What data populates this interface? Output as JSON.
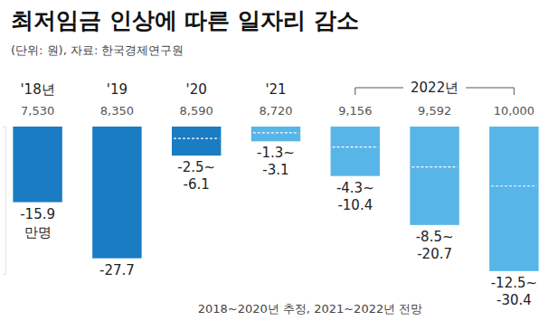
{
  "chart_data": {
    "type": "bar",
    "title": "최저임금 인상에 따른 일자리 감소",
    "subtitle": "(단위: 원), 자료: 한국경제연구원",
    "note": "2018~2020년 추정, 2021~2022년 전망",
    "categories": [
      "'18년",
      "'19",
      "'20",
      "'21",
      null,
      null,
      null
    ],
    "group_label": "2022년",
    "wage_labels": [
      "7,530",
      "8,350",
      "8,590",
      "8,720",
      "9,156",
      "9,592",
      "10,000"
    ],
    "values": [
      -15.9,
      -27.7,
      -2.5,
      -1.3,
      -4.3,
      -8.5,
      -12.5
    ],
    "value_labels": [
      "-15.9",
      "-27.7",
      "-2.5~",
      "-1.3~",
      "-4.3~",
      "-8.5~",
      "-12.5~"
    ],
    "lower": [
      null,
      null,
      -6.1,
      -3.1,
      -10.4,
      -20.7,
      -30.4
    ],
    "unit": "만명",
    "colors": [
      "#1a7cc3",
      "#1a7cc3",
      "#1a7cc3",
      "#58b5e8",
      "#58b5e8",
      "#58b5e8",
      "#58b5e8"
    ],
    "ylim": [
      -31,
      0
    ],
    "yticks": [
      -31,
      0
    ],
    "tick_labels": false,
    "data_labels": true,
    "grid": false
  }
}
